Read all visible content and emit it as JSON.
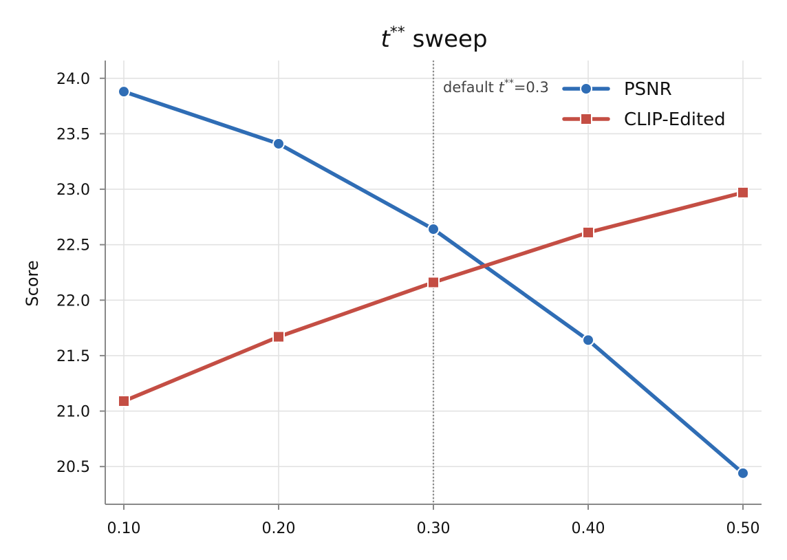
{
  "chart_data": {
    "type": "line",
    "title_base": "t",
    "title_sup": "**",
    "title_rest": " sweep",
    "xlabel": "",
    "ylabel": "Score",
    "x": [
      0.1,
      0.2,
      0.3,
      0.4,
      0.5
    ],
    "x_tick_labels": [
      "0.10",
      "0.20",
      "0.30",
      "0.40",
      "0.50"
    ],
    "y_ticks": [
      20.5,
      21.0,
      21.5,
      22.0,
      22.5,
      23.0,
      23.5,
      24.0
    ],
    "y_tick_labels": [
      "20.5",
      "21.0",
      "21.5",
      "22.0",
      "22.5",
      "23.0",
      "23.5",
      "24.0"
    ],
    "xlim": [
      0.088,
      0.512
    ],
    "ylim": [
      20.16,
      24.16
    ],
    "grid": true,
    "legend_position": "top-right",
    "series": [
      {
        "name": "PSNR",
        "marker": "circle",
        "color": "#2f6db5",
        "values": [
          23.88,
          23.41,
          22.64,
          21.64,
          20.44
        ]
      },
      {
        "name": "CLIP-Edited",
        "marker": "square",
        "color": "#c44e44",
        "values": [
          21.09,
          21.67,
          22.16,
          22.61,
          22.97
        ]
      }
    ],
    "vline": {
      "x": 0.3,
      "label_prefix": "default ",
      "label_var": "t",
      "label_sup": "**",
      "label_suffix": "=0.3",
      "color": "#888888"
    }
  }
}
